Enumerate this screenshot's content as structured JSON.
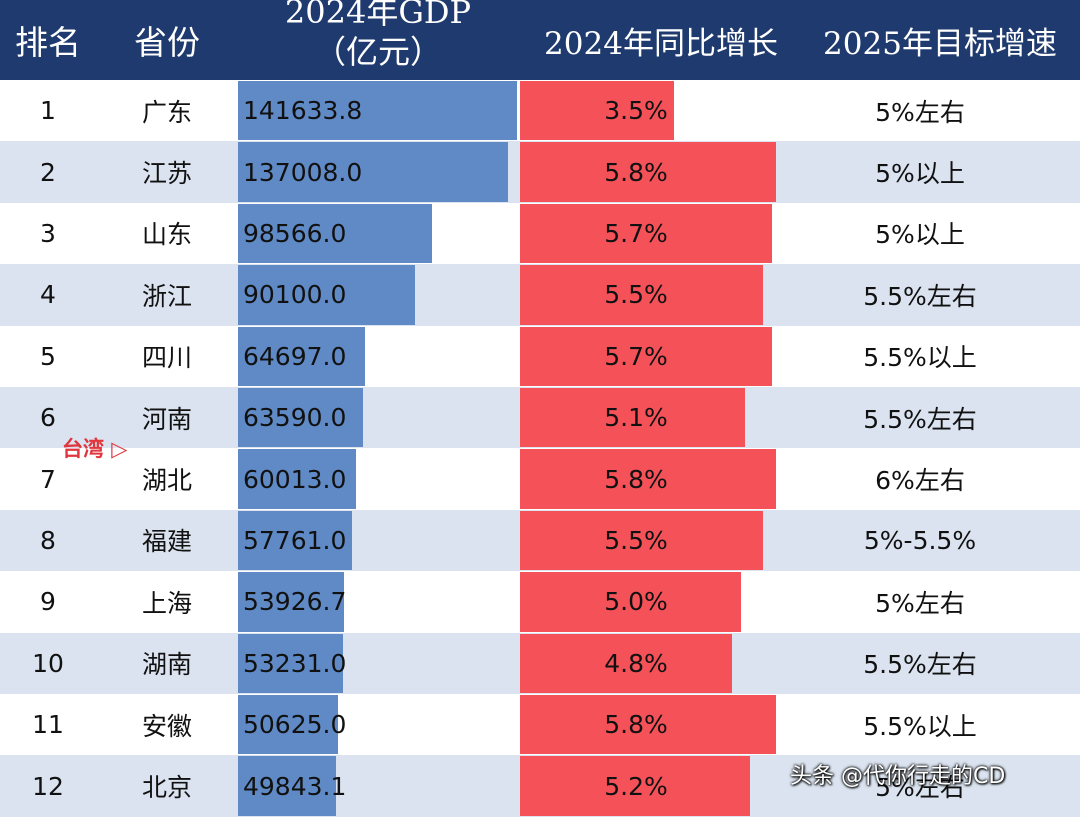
{
  "header": {
    "rank": "排名",
    "province": "省份",
    "gdp_line1": "2024年GDP",
    "gdp_line2": "（亿元）",
    "growth": "2024年同比增长",
    "target": "2025年目标增速"
  },
  "annotation": "台湾 ▷",
  "watermark": "头条 @代你行走的CD",
  "colors": {
    "header_bg": "#1f3a6e",
    "gdp_bar": "#5f8ac6",
    "growth_bar": "#f45158",
    "alt_row": "#dae3ef"
  },
  "chart_data": {
    "type": "table",
    "title": "",
    "columns": [
      "排名",
      "省份",
      "2024年GDP（亿元）",
      "2024年同比增长",
      "2025年目标增速"
    ],
    "gdp_max": 141633.8,
    "growth_max": 5.8,
    "rows": [
      {
        "rank": "1",
        "province": "广东",
        "gdp": 141633.8,
        "gdp_label": "141633.8",
        "growth": 3.5,
        "growth_label": "3.5%",
        "target": "5%左右"
      },
      {
        "rank": "2",
        "province": "江苏",
        "gdp": 137008.0,
        "gdp_label": "137008.0",
        "growth": 5.8,
        "growth_label": "5.8%",
        "target": "5%以上"
      },
      {
        "rank": "3",
        "province": "山东",
        "gdp": 98566.0,
        "gdp_label": "98566.0",
        "growth": 5.7,
        "growth_label": "5.7%",
        "target": "5%以上"
      },
      {
        "rank": "4",
        "province": "浙江",
        "gdp": 90100.0,
        "gdp_label": "90100.0",
        "growth": 5.5,
        "growth_label": "5.5%",
        "target": "5.5%左右"
      },
      {
        "rank": "5",
        "province": "四川",
        "gdp": 64697.0,
        "gdp_label": "64697.0",
        "growth": 5.7,
        "growth_label": "5.7%",
        "target": "5.5%以上"
      },
      {
        "rank": "6",
        "province": "河南",
        "gdp": 63590.0,
        "gdp_label": "63590.0",
        "growth": 5.1,
        "growth_label": "5.1%",
        "target": "5.5%左右"
      },
      {
        "rank": "7",
        "province": "湖北",
        "gdp": 60013.0,
        "gdp_label": "60013.0",
        "growth": 5.8,
        "growth_label": "5.8%",
        "target": "6%左右"
      },
      {
        "rank": "8",
        "province": "福建",
        "gdp": 57761.0,
        "gdp_label": "57761.0",
        "growth": 5.5,
        "growth_label": "5.5%",
        "target": "5%-5.5%"
      },
      {
        "rank": "9",
        "province": "上海",
        "gdp": 53926.7,
        "gdp_label": "53926.7",
        "growth": 5.0,
        "growth_label": "5.0%",
        "target": "5%左右"
      },
      {
        "rank": "10",
        "province": "湖南",
        "gdp": 53231.0,
        "gdp_label": "53231.0",
        "growth": 4.8,
        "growth_label": "4.8%",
        "target": "5.5%左右"
      },
      {
        "rank": "11",
        "province": "安徽",
        "gdp": 50625.0,
        "gdp_label": "50625.0",
        "growth": 5.8,
        "growth_label": "5.8%",
        "target": "5.5%以上"
      },
      {
        "rank": "12",
        "province": "北京",
        "gdp": 49843.1,
        "gdp_label": "49843.1",
        "growth": 5.2,
        "growth_label": "5.2%",
        "target": "5%左右"
      }
    ]
  }
}
